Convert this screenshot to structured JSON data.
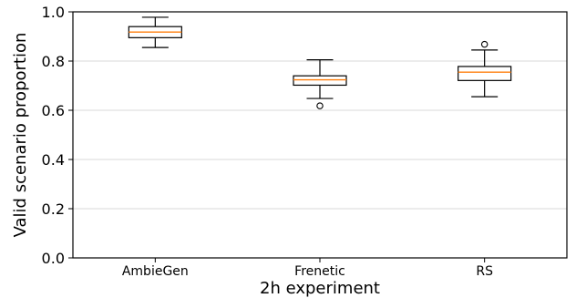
{
  "chart_data": {
    "type": "boxplot",
    "xlabel": "2h experiment",
    "ylabel": "Valid scenario proportion",
    "ylim": [
      0.0,
      1.0
    ],
    "yticks": [
      "0.0",
      "0.2",
      "0.4",
      "0.6",
      "0.8",
      "1.0"
    ],
    "grid": "horizontal",
    "categories": [
      "AmbieGen",
      "Frenetic",
      "RS"
    ],
    "boxes": [
      {
        "category": "AmbieGen",
        "whisker_low": 0.855,
        "q1": 0.895,
        "median": 0.918,
        "q3": 0.94,
        "whisker_high": 0.978,
        "outliers": []
      },
      {
        "category": "Frenetic",
        "whisker_low": 0.648,
        "q1": 0.702,
        "median": 0.724,
        "q3": 0.74,
        "whisker_high": 0.805,
        "outliers": [
          0.618
        ]
      },
      {
        "category": "RS",
        "whisker_low": 0.655,
        "q1": 0.721,
        "median": 0.755,
        "q3": 0.778,
        "whisker_high": 0.845,
        "outliers": [
          0.868
        ]
      }
    ],
    "colors": {
      "box": "#000000",
      "median": "#ff7f0e",
      "grid": "#d9d9d9"
    }
  }
}
